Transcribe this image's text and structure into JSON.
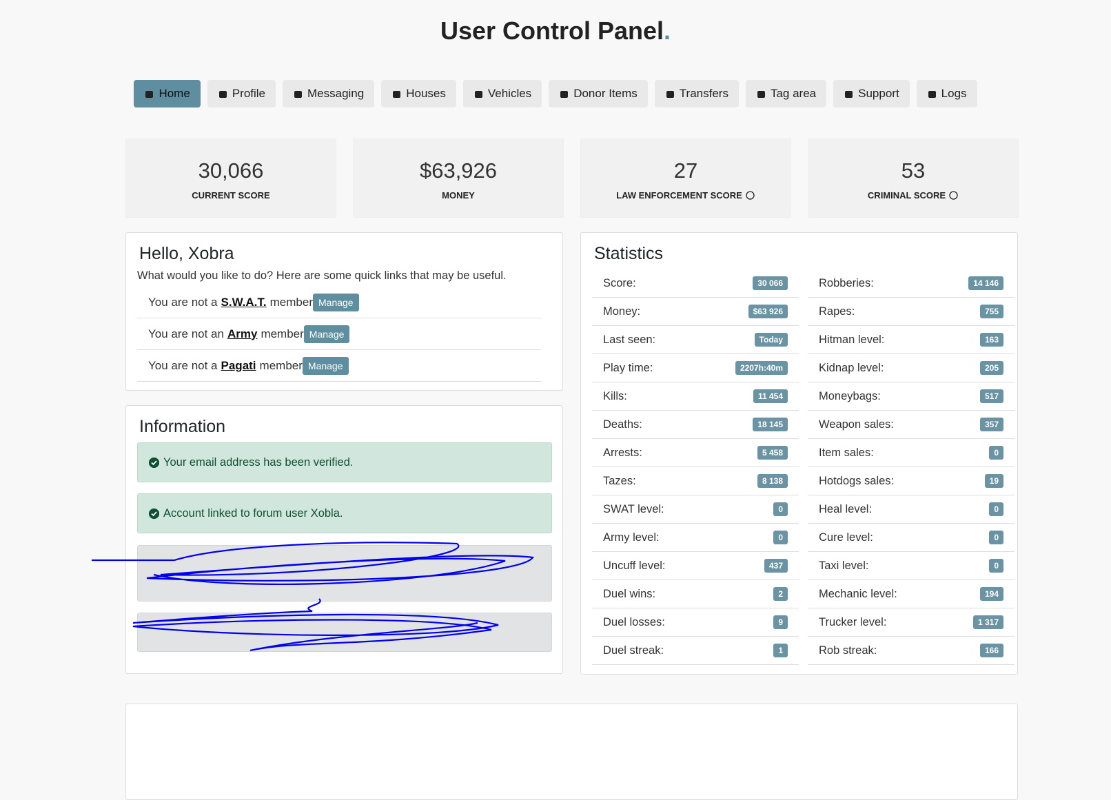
{
  "header": {
    "title": "User Control Panel",
    "title_dot": "."
  },
  "nav": {
    "items": [
      "Home",
      "Profile",
      "Messaging",
      "Houses",
      "Vehicles",
      "Donor Items",
      "Transfers",
      "Tag area",
      "Support",
      "Logs"
    ],
    "active": 0
  },
  "summary": [
    {
      "value": "30,066",
      "label": "CURRENT SCORE",
      "help": false
    },
    {
      "value": "$63,926",
      "label": "MONEY",
      "help": false
    },
    {
      "value": "27",
      "label": "LAW ENFORCEMENT SCORE",
      "help": true
    },
    {
      "value": "53",
      "label": "CRIMINAL SCORE",
      "help": true
    }
  ],
  "hello": {
    "title": "Hello, Xobra",
    "intro": "What would you like to do? Here are some quick links that may be useful.",
    "memberships": [
      {
        "prefix": "You are not a",
        "name": "S.W.A.T.",
        "suffix": "member",
        "button": "Manage"
      },
      {
        "prefix": "You are not an",
        "name": "Army",
        "suffix": "member",
        "button": "Manage"
      },
      {
        "prefix": "You are not a",
        "name": "Pagati",
        "suffix": "member",
        "button": "Manage"
      }
    ]
  },
  "information": {
    "title": "Information",
    "alerts": [
      "Your email address has been verified.",
      "Account linked to forum user Xobla."
    ]
  },
  "statistics": {
    "title": "Statistics",
    "left": [
      {
        "label": "Score:",
        "value": "30 066"
      },
      {
        "label": "Money:",
        "value": "$63 926"
      },
      {
        "label": "Last seen:",
        "value": "Today"
      },
      {
        "label": "Play time:",
        "value": "2207h:40m"
      },
      {
        "label": "Kills:",
        "value": "11 454"
      },
      {
        "label": "Deaths:",
        "value": "18 145"
      },
      {
        "label": "Arrests:",
        "value": "5 458"
      },
      {
        "label": "Tazes:",
        "value": "8 138"
      },
      {
        "label": "SWAT level:",
        "value": "0"
      },
      {
        "label": "Army level:",
        "value": "0"
      },
      {
        "label": "Uncuff level:",
        "value": "437"
      },
      {
        "label": "Duel wins:",
        "value": "2"
      },
      {
        "label": "Duel losses:",
        "value": "9"
      },
      {
        "label": "Duel streak:",
        "value": "1"
      }
    ],
    "right": [
      {
        "label": "Robberies:",
        "value": "14 146"
      },
      {
        "label": "Rapes:",
        "value": "755"
      },
      {
        "label": "Hitman level:",
        "value": "163"
      },
      {
        "label": "Kidnap level:",
        "value": "205"
      },
      {
        "label": "Moneybags:",
        "value": "517"
      },
      {
        "label": "Weapon sales:",
        "value": "357"
      },
      {
        "label": "Item sales:",
        "value": "0"
      },
      {
        "label": "Hotdogs sales:",
        "value": "19"
      },
      {
        "label": "Heal level:",
        "value": "0"
      },
      {
        "label": "Cure level:",
        "value": "0"
      },
      {
        "label": "Taxi level:",
        "value": "0"
      },
      {
        "label": "Mechanic level:",
        "value": "194"
      },
      {
        "label": "Trucker level:",
        "value": "1 317"
      },
      {
        "label": "Rob streak:",
        "value": "166"
      }
    ]
  }
}
